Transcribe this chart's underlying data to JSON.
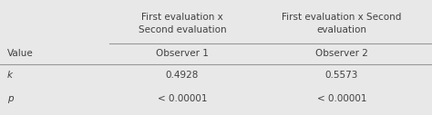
{
  "background_color": "#e8e8e8",
  "col0_header": "Value",
  "col1_header": "First evaluation x\nSecond evaluation",
  "col2_header": "First evaluation x Second\nevaluation",
  "subheader_col1": "Observer 1",
  "subheader_col2": "Observer 2",
  "rows": [
    [
      "k",
      "0.4928",
      "0.5573"
    ],
    [
      "p",
      "< 0.00001",
      "< 0.00001"
    ]
  ],
  "font_size": 7.5,
  "text_color": "#404040",
  "line_color": "#999999",
  "figsize": [
    4.74,
    1.27
  ],
  "dpi": 100
}
